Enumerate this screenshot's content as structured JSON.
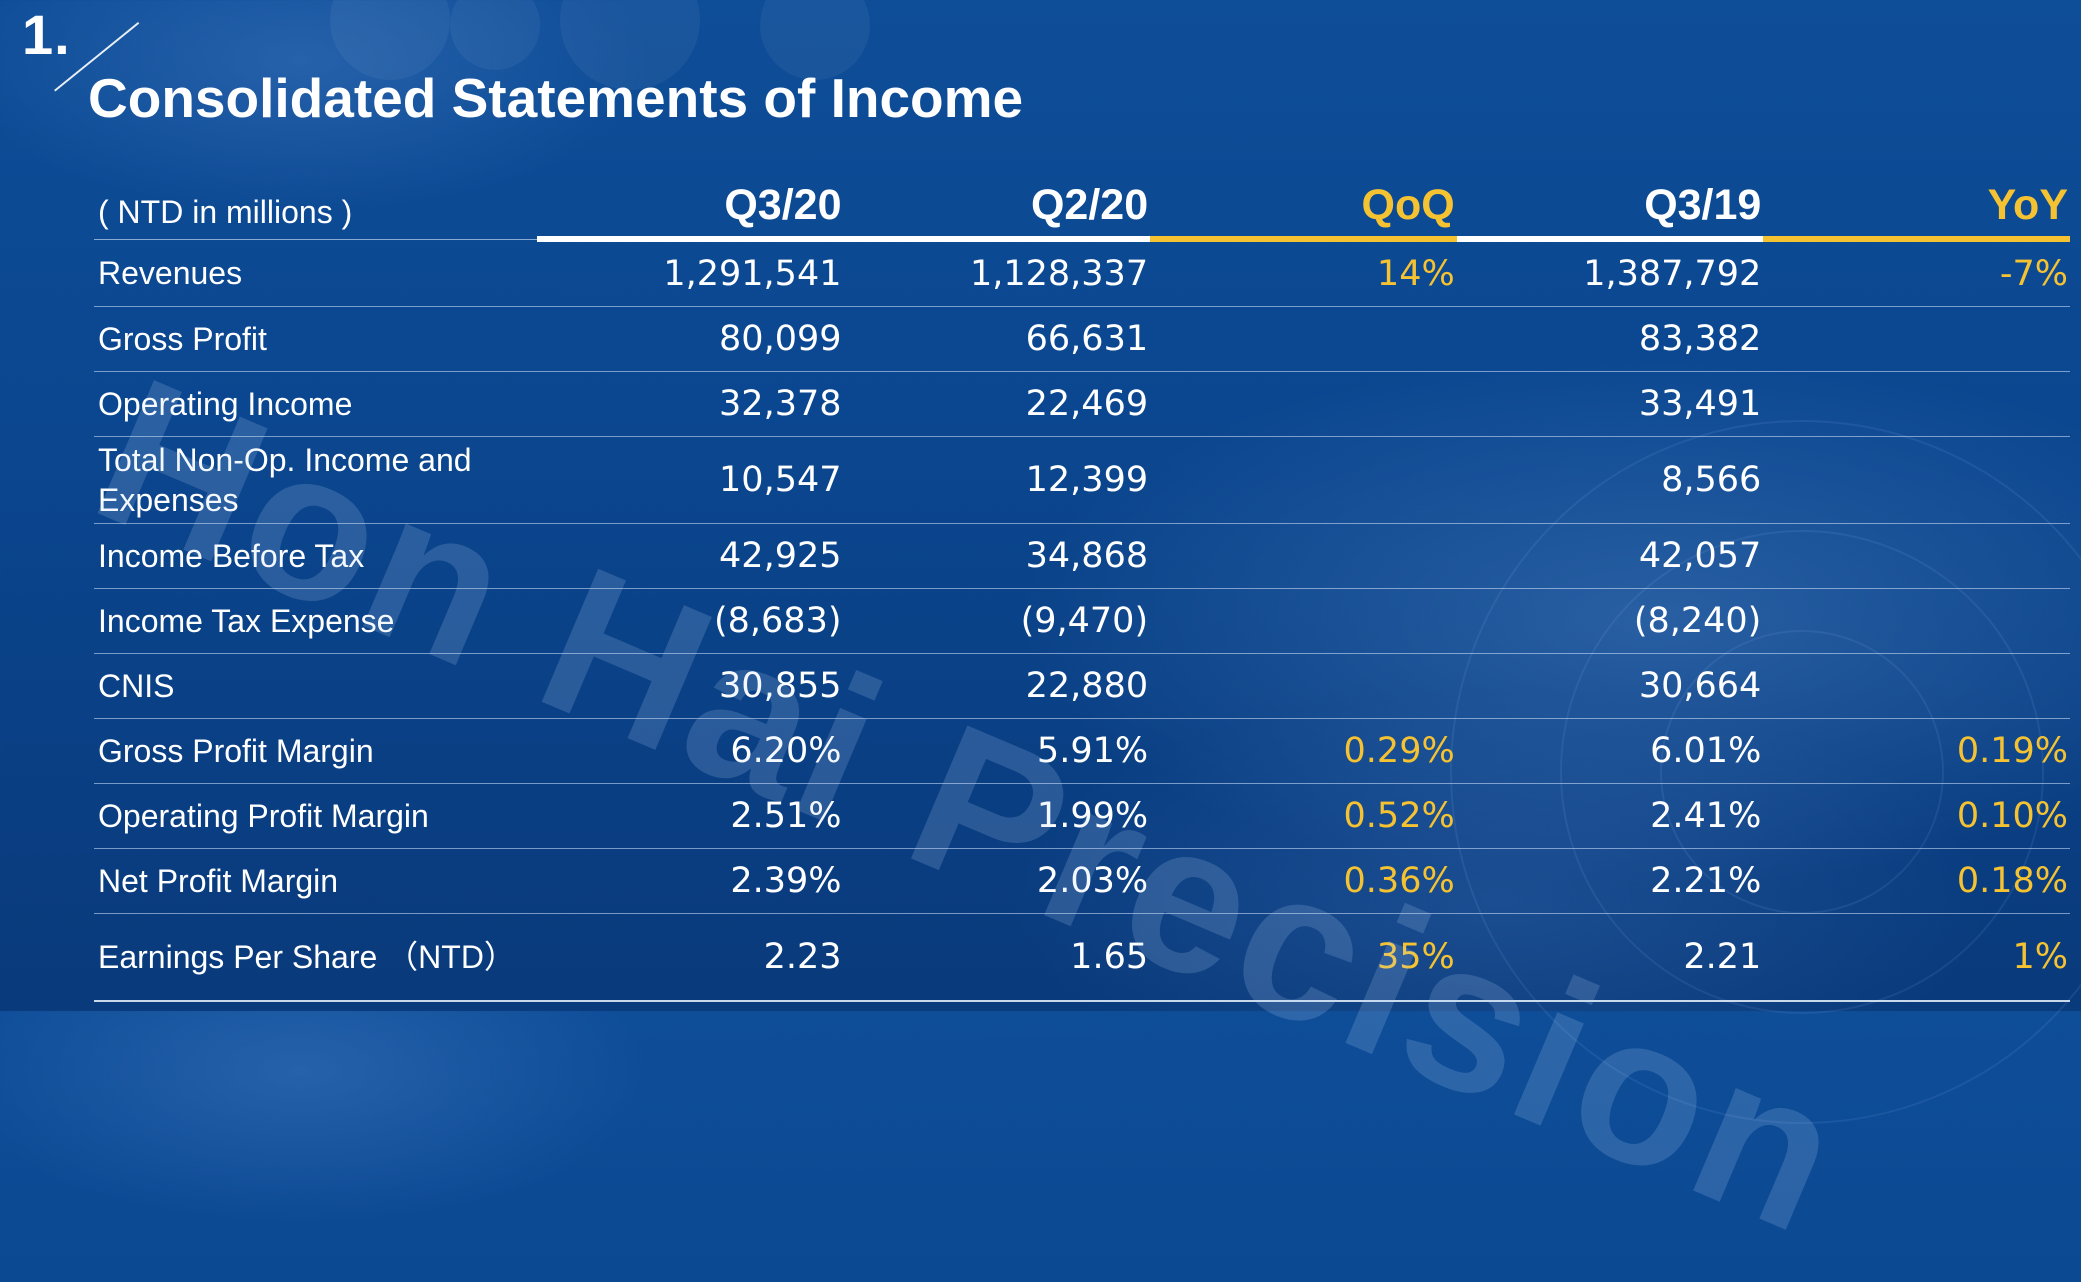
{
  "slide": {
    "number": "1.",
    "title": "Consolidated Statements of Income",
    "watermark": "Hon Hai Precision"
  },
  "colors": {
    "background": "#0b4790",
    "text": "#ffffff",
    "accent": "#f5c232"
  },
  "table": {
    "unit_label": "( NTD in millions )",
    "columns": [
      "Q3/20",
      "Q2/20",
      "QoQ",
      "Q3/19",
      "YoY"
    ],
    "rows": [
      {
        "label": "Revenues",
        "q3_20": "1,291,541",
        "q2_20": "1,128,337",
        "qoq": "14%",
        "q3_19": "1,387,792",
        "yoy": "-7%"
      },
      {
        "label": "Gross Profit",
        "q3_20": "80,099",
        "q2_20": "66,631",
        "qoq": "",
        "q3_19": "83,382",
        "yoy": ""
      },
      {
        "label": "Operating Income",
        "q3_20": "32,378",
        "q2_20": "22,469",
        "qoq": "",
        "q3_19": "33,491",
        "yoy": ""
      },
      {
        "label": "Total Non-Op. Income and Expenses",
        "q3_20": "10,547",
        "q2_20": "12,399",
        "qoq": "",
        "q3_19": "8,566",
        "yoy": ""
      },
      {
        "label": "Income Before Tax",
        "q3_20": "42,925",
        "q2_20": "34,868",
        "qoq": "",
        "q3_19": "42,057",
        "yoy": ""
      },
      {
        "label": "Income Tax Expense",
        "q3_20": "(8,683)",
        "q2_20": "(9,470)",
        "qoq": "",
        "q3_19": "(8,240)",
        "yoy": ""
      },
      {
        "label": "CNIS",
        "q3_20": "30,855",
        "q2_20": "22,880",
        "qoq": "",
        "q3_19": "30,664",
        "yoy": ""
      },
      {
        "label": "Gross Profit Margin",
        "q3_20": "6.20%",
        "q2_20": "5.91%",
        "qoq": "0.29%",
        "q3_19": "6.01%",
        "yoy": "0.19%"
      },
      {
        "label": "Operating Profit Margin",
        "q3_20": "2.51%",
        "q2_20": "1.99%",
        "qoq": "0.52%",
        "q3_19": "2.41%",
        "yoy": "0.10%"
      },
      {
        "label": "Net Profit Margin",
        "q3_20": "2.39%",
        "q2_20": "2.03%",
        "qoq": "0.36%",
        "q3_19": "2.21%",
        "yoy": "0.18%"
      },
      {
        "label": "Earnings Per Share （NTD）",
        "q3_20": "2.23",
        "q2_20": "1.65",
        "qoq": "35%",
        "q3_19": "2.21",
        "yoy": "1%"
      }
    ]
  }
}
